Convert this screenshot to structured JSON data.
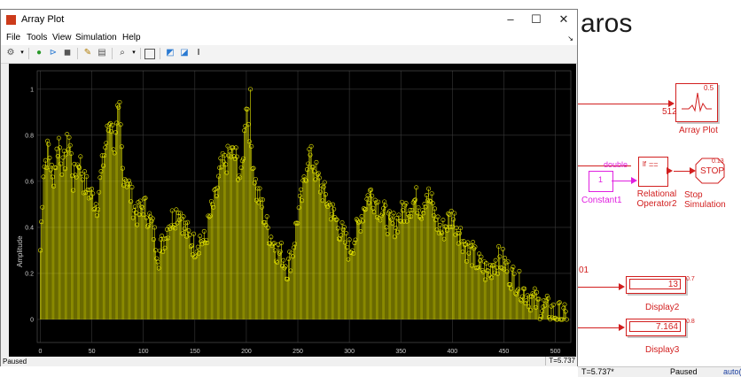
{
  "window": {
    "title": "Array Plot",
    "controls": {
      "minimize": "–",
      "maximize": "☐",
      "close": "✕"
    }
  },
  "menu": [
    "File",
    "Tools",
    "View",
    "Simulation",
    "Help"
  ],
  "toolbar_icons": [
    "gear-icon",
    "run-icon",
    "step-forward-icon",
    "stop-icon",
    "highlight-icon",
    "pin-icon",
    "zoom-in-icon",
    "fit-icon",
    "zoom-x-icon",
    "zoom-y-icon",
    "scale-icon"
  ],
  "plot": {
    "ylabel": "Amplitude",
    "xticks": [
      "0",
      "50",
      "100",
      "150",
      "200",
      "250",
      "300",
      "350",
      "400",
      "450",
      "500"
    ],
    "yticks": [
      "0",
      "0.2",
      "0.4",
      "0.6",
      "0.8",
      "1"
    ]
  },
  "chart_data": {
    "type": "bar",
    "ylabel": "Amplitude",
    "xlim": [
      -3,
      515
    ],
    "ylim": [
      -0.1,
      1.08
    ],
    "n_samples": 512,
    "series": [
      {
        "color": "#e8e800",
        "control_x": [
          0,
          3,
          8,
          12,
          18,
          22,
          28,
          32,
          38,
          42,
          48,
          55,
          62,
          68,
          72,
          77,
          80,
          85,
          90,
          95,
          100,
          105,
          110,
          115,
          120,
          125,
          130,
          135,
          140,
          145,
          150,
          155,
          160,
          165,
          170,
          175,
          180,
          185,
          190,
          195,
          200,
          205,
          210,
          215,
          220,
          225,
          230,
          235,
          240,
          245,
          250,
          255,
          260,
          265,
          270,
          275,
          280,
          285,
          290,
          295,
          300,
          305,
          310,
          315,
          320,
          325,
          330,
          335,
          340,
          345,
          350,
          355,
          360,
          365,
          370,
          375,
          380,
          385,
          390,
          395,
          400,
          405,
          410,
          415,
          420,
          425,
          430,
          435,
          440,
          445,
          450,
          455,
          460,
          465,
          470,
          475,
          480,
          485,
          490,
          495,
          500,
          505,
          511
        ],
        "control_y": [
          0.3,
          0.65,
          0.75,
          0.6,
          0.78,
          0.65,
          0.8,
          0.6,
          0.7,
          0.6,
          0.55,
          0.5,
          0.72,
          0.88,
          0.75,
          0.9,
          0.65,
          0.6,
          0.5,
          0.45,
          0.5,
          0.45,
          0.38,
          0.28,
          0.35,
          0.42,
          0.45,
          0.48,
          0.4,
          0.35,
          0.32,
          0.35,
          0.33,
          0.45,
          0.52,
          0.65,
          0.68,
          0.72,
          0.7,
          0.6,
          0.95,
          0.75,
          0.55,
          0.5,
          0.4,
          0.35,
          0.3,
          0.28,
          0.22,
          0.3,
          0.45,
          0.55,
          0.72,
          0.68,
          0.6,
          0.55,
          0.5,
          0.45,
          0.4,
          0.35,
          0.3,
          0.35,
          0.42,
          0.5,
          0.55,
          0.52,
          0.48,
          0.45,
          0.4,
          0.42,
          0.45,
          0.48,
          0.5,
          0.52,
          0.48,
          0.55,
          0.5,
          0.42,
          0.38,
          0.42,
          0.45,
          0.4,
          0.35,
          0.3,
          0.28,
          0.24,
          0.22,
          0.2,
          0.25,
          0.26,
          0.25,
          0.2,
          0.18,
          0.15,
          0.12,
          0.1,
          0.08,
          0.06,
          0.05,
          0.04,
          0.02,
          0.02,
          0.0
        ],
        "peaks_y": [
          0.82,
          0.93,
          1.0
        ]
      }
    ]
  },
  "win_status": {
    "left": "Paused",
    "right": "T=5.737"
  },
  "simulink": {
    "model_title_fragment": "aros",
    "array_plot_block": {
      "port_label": "512",
      "value_label": "0.5",
      "name": "Array Plot"
    },
    "constant_block": {
      "value": "1",
      "name": "Constant1"
    },
    "relational_block": {
      "type_label": "double",
      "port_label": "lf",
      "op": "==",
      "name": "Relational\nOperator2"
    },
    "stop_block": {
      "value_label": "0.13",
      "text": "STOP",
      "name": "Stop Simulation"
    },
    "display2": {
      "value": "13",
      "badge": "0.7",
      "name": "Display2"
    },
    "display3": {
      "value": "7.164",
      "badge": "0.8",
      "name": "Display3"
    },
    "left_fragment_label": "01"
  },
  "bg_status": {
    "time": "T=5.737*",
    "state": "Paused",
    "solver": "auto("
  }
}
